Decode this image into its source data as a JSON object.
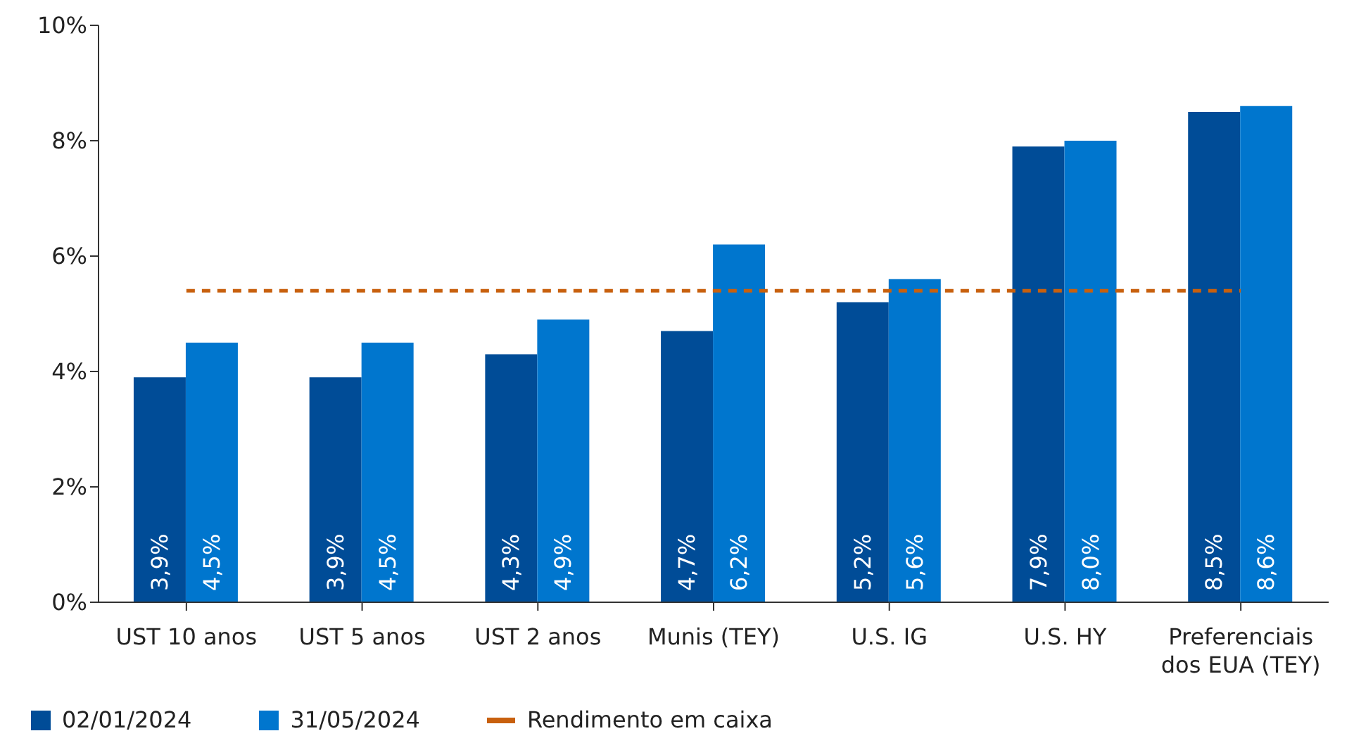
{
  "chart_data": {
    "type": "bar",
    "categories": [
      "UST 10 anos",
      "UST 5 anos",
      "UST 2 anos",
      "Munis (TEY)",
      "U.S. IG",
      "U.S. HY",
      "Preferenciais dos EUA (TEY)"
    ],
    "series": [
      {
        "name": "02/01/2024",
        "color": "#004c97",
        "values": [
          3.9,
          3.9,
          4.3,
          4.7,
          5.2,
          7.9,
          8.5
        ],
        "value_labels": [
          "3,9%",
          "3,9%",
          "4,3%",
          "4,7%",
          "5,2%",
          "7,9%",
          "8,5%"
        ]
      },
      {
        "name": "31/05/2024",
        "color": "#0076ce",
        "values": [
          4.5,
          4.5,
          4.9,
          6.2,
          5.6,
          8.0,
          8.6
        ],
        "value_labels": [
          "4,5%",
          "4,5%",
          "4,9%",
          "6,2%",
          "5,6%",
          "8,0%",
          "8,6%"
        ]
      }
    ],
    "ylim": [
      0,
      10
    ],
    "yticks": [
      {
        "value": 0,
        "label": "0%"
      },
      {
        "value": 2,
        "label": "2%"
      },
      {
        "value": 4,
        "label": "4%"
      },
      {
        "value": 6,
        "label": "6%"
      },
      {
        "value": 8,
        "label": "8%"
      },
      {
        "value": 10,
        "label": "10%"
      }
    ],
    "ref_lines": [
      {
        "axis": "y",
        "value": 5.4,
        "label": "Rendimento em caixa",
        "color": "#c8600e",
        "line_style": "dashed"
      }
    ],
    "grid": false,
    "legend": "bottom left"
  }
}
